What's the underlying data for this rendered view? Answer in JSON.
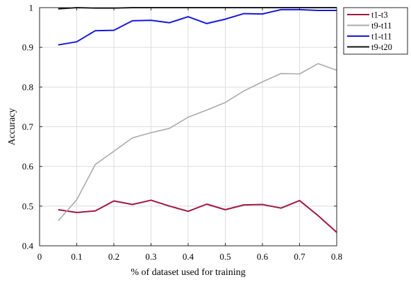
{
  "chart_data": {
    "type": "line",
    "title": "",
    "xlabel": "% of dataset used for training",
    "ylabel": "Accuracy",
    "xlim": [
      0,
      0.8
    ],
    "ylim": [
      0.4,
      1
    ],
    "xticks": [
      0,
      0.1,
      0.2,
      0.3,
      0.4,
      0.5,
      0.6,
      0.7,
      0.8
    ],
    "xtick_labels": [
      "0",
      "0.1",
      "0.2",
      "0.3",
      "0.4",
      "0.5",
      "0.6",
      "0.7",
      "0.8"
    ],
    "yticks": [
      0.4,
      0.5,
      0.6,
      0.7,
      0.8,
      0.9,
      1
    ],
    "ytick_labels": [
      "0.4",
      "0.5",
      "0.6",
      "0.7",
      "0.8",
      "0.9",
      "1"
    ],
    "grid": true,
    "legend_position": "outside top-right",
    "x": [
      0.05,
      0.1,
      0.15,
      0.2,
      0.25,
      0.3,
      0.35,
      0.4,
      0.45,
      0.5,
      0.55,
      0.6,
      0.65,
      0.7,
      0.75,
      0.8
    ],
    "series": [
      {
        "name": "t1-t3",
        "color": "#a0163c",
        "values": [
          0.491,
          0.484,
          0.488,
          0.513,
          0.504,
          0.515,
          0.5,
          0.487,
          0.505,
          0.491,
          0.503,
          0.504,
          0.495,
          0.514,
          0.476,
          0.434
        ]
      },
      {
        "name": "t9-t11",
        "color": "#aaaaaa",
        "values": [
          0.463,
          0.516,
          0.605,
          0.638,
          0.672,
          0.685,
          0.696,
          0.724,
          0.742,
          0.761,
          0.79,
          0.813,
          0.834,
          0.833,
          0.859,
          0.842
        ]
      },
      {
        "name": "t1-t11",
        "color": "#1515dd",
        "values": [
          0.906,
          0.914,
          0.942,
          0.943,
          0.967,
          0.968,
          0.962,
          0.977,
          0.96,
          0.971,
          0.985,
          0.984,
          0.995,
          0.995,
          0.993,
          0.993
        ]
      },
      {
        "name": "t9-t20",
        "color": "#111111",
        "values": [
          0.997,
          1.0,
          0.999,
          0.999,
          1.0,
          1.0,
          1.0,
          1.0,
          1.0,
          1.0,
          1.0,
          1.0,
          1.0,
          1.0,
          1.0,
          1.0
        ]
      }
    ]
  }
}
